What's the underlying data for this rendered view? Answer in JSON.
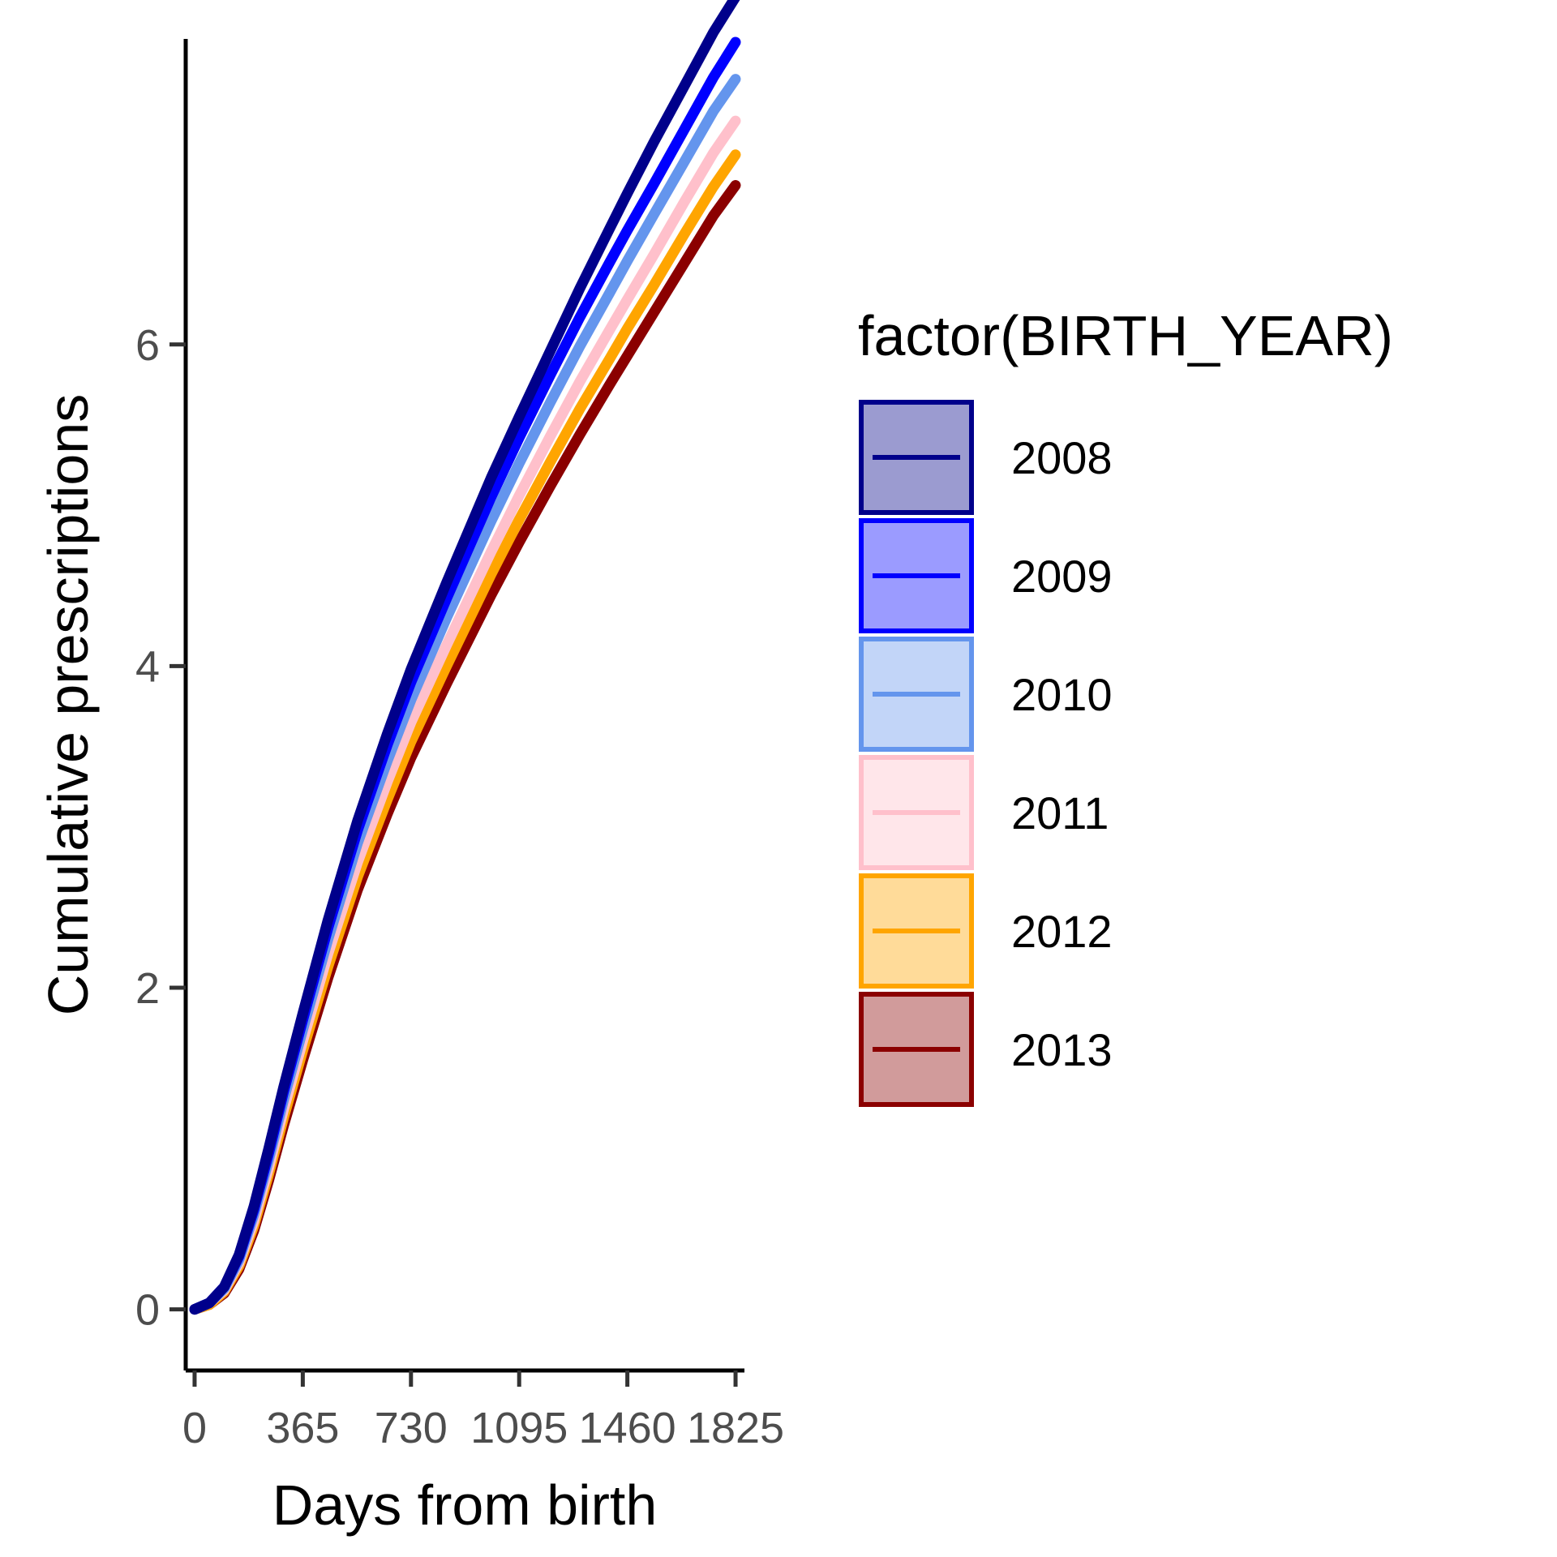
{
  "chart_data": {
    "type": "line",
    "title": "",
    "xlabel": "Days from birth",
    "ylabel": "Cumulative prescriptions",
    "xlim": [
      -30,
      1855
    ],
    "ylim": [
      -0.38,
      7.9
    ],
    "x_ticks": [
      0,
      365,
      730,
      1095,
      1460,
      1825
    ],
    "y_ticks": [
      0,
      2,
      4,
      6
    ],
    "grid": false,
    "legend": {
      "title": "factor(BIRTH_YEAR)",
      "position": "right"
    },
    "x": [
      0,
      50,
      100,
      150,
      200,
      250,
      300,
      365,
      450,
      550,
      650,
      730,
      850,
      1000,
      1095,
      1200,
      1300,
      1400,
      1460,
      1550,
      1650,
      1750,
      1825
    ],
    "series": [
      {
        "name": "2008",
        "color": "#00008B",
        "fill": "#9B9BD0",
        "values": [
          0,
          0.04,
          0.14,
          0.34,
          0.64,
          1.0,
          1.38,
          1.84,
          2.42,
          3.04,
          3.58,
          3.98,
          4.52,
          5.17,
          5.55,
          5.96,
          6.35,
          6.72,
          6.94,
          7.26,
          7.6,
          7.94,
          8.16
        ]
      },
      {
        "name": "2009",
        "color": "#0000FF",
        "fill": "#9B9BFF",
        "values": [
          0,
          0.04,
          0.14,
          0.33,
          0.62,
          0.97,
          1.35,
          1.8,
          2.37,
          2.98,
          3.51,
          3.9,
          4.42,
          5.05,
          5.42,
          5.81,
          6.17,
          6.51,
          6.71,
          7.0,
          7.33,
          7.66,
          7.88
        ]
      },
      {
        "name": "2010",
        "color": "#6495ED",
        "fill": "#C2D5F8",
        "values": [
          0,
          0.04,
          0.13,
          0.31,
          0.59,
          0.93,
          1.3,
          1.74,
          2.3,
          2.9,
          3.41,
          3.79,
          4.3,
          4.9,
          5.26,
          5.64,
          5.99,
          6.32,
          6.52,
          6.81,
          7.13,
          7.45,
          7.65
        ]
      },
      {
        "name": "2011",
        "color": "#FFC0CB",
        "fill": "#FFE6EA",
        "values": [
          0,
          0.04,
          0.12,
          0.29,
          0.55,
          0.88,
          1.24,
          1.67,
          2.21,
          2.78,
          3.28,
          3.65,
          4.13,
          4.71,
          5.06,
          5.43,
          5.77,
          6.09,
          6.28,
          6.56,
          6.88,
          7.19,
          7.39
        ]
      },
      {
        "name": "2012",
        "color": "#FFA500",
        "fill": "#FFDB99",
        "values": [
          0,
          0.03,
          0.11,
          0.27,
          0.52,
          0.84,
          1.19,
          1.61,
          2.13,
          2.69,
          3.17,
          3.53,
          4.0,
          4.57,
          4.91,
          5.27,
          5.6,
          5.91,
          6.1,
          6.37,
          6.68,
          6.98,
          7.18
        ]
      },
      {
        "name": "2013",
        "color": "#8B0000",
        "fill": "#D19B9B",
        "values": [
          0,
          0.03,
          0.1,
          0.25,
          0.49,
          0.8,
          1.14,
          1.55,
          2.06,
          2.61,
          3.08,
          3.43,
          3.89,
          4.44,
          4.77,
          5.12,
          5.44,
          5.75,
          5.93,
          6.2,
          6.5,
          6.8,
          6.99
        ]
      }
    ]
  }
}
